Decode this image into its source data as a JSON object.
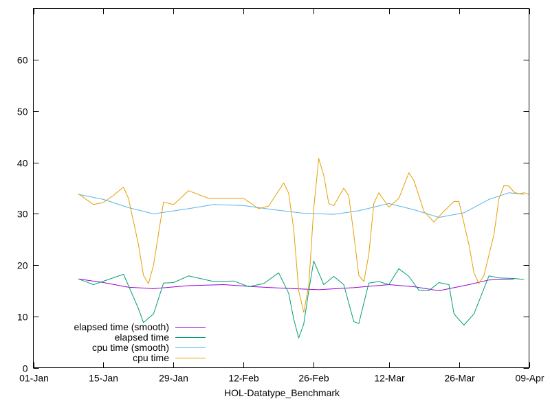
{
  "chart_data": {
    "type": "line",
    "title": "",
    "xlabel": "HOL-Datatype_Benchmark",
    "ylabel": "",
    "xlim": [
      "2024-01-01",
      "2024-04-09"
    ],
    "ylim": [
      0,
      70
    ],
    "x_ticks": [
      {
        "date": "2024-01-01",
        "label": "01-Jan"
      },
      {
        "date": "2024-01-15",
        "label": "15-Jan"
      },
      {
        "date": "2024-01-29",
        "label": "29-Jan"
      },
      {
        "date": "2024-02-12",
        "label": "12-Feb"
      },
      {
        "date": "2024-02-26",
        "label": "26-Feb"
      },
      {
        "date": "2024-03-12",
        "label": "12-Mar"
      },
      {
        "date": "2024-03-26",
        "label": "26-Mar"
      },
      {
        "date": "2024-04-09",
        "label": "09-Apr"
      }
    ],
    "y_ticks": [
      0,
      10,
      20,
      30,
      40,
      50,
      60
    ],
    "grid": false,
    "legend_position": "bottom-left",
    "series": [
      {
        "name": "elapsed time (smooth)",
        "color": "#9400d3",
        "points": [
          [
            "2024-01-10",
            17.3
          ],
          [
            "2024-01-15",
            16.6
          ],
          [
            "2024-01-20",
            15.7
          ],
          [
            "2024-01-25",
            15.4
          ],
          [
            "2024-02-01",
            16.0
          ],
          [
            "2024-02-08",
            16.2
          ],
          [
            "2024-02-14",
            15.8
          ],
          [
            "2024-02-20",
            15.5
          ],
          [
            "2024-02-27",
            15.2
          ],
          [
            "2024-03-05",
            15.6
          ],
          [
            "2024-03-12",
            16.2
          ],
          [
            "2024-03-17",
            15.8
          ],
          [
            "2024-03-22",
            15.0
          ],
          [
            "2024-03-28",
            16.2
          ],
          [
            "2024-04-01",
            17.1
          ],
          [
            "2024-04-06",
            17.3
          ]
        ]
      },
      {
        "name": "elapsed time",
        "color": "#009e73",
        "points": [
          [
            "2024-01-10",
            17.3
          ],
          [
            "2024-01-13",
            16.2
          ],
          [
            "2024-01-16",
            17.2
          ],
          [
            "2024-01-19",
            18.2
          ],
          [
            "2024-01-20",
            16.0
          ],
          [
            "2024-01-22",
            11.5
          ],
          [
            "2024-01-23",
            8.8
          ],
          [
            "2024-01-25",
            10.5
          ],
          [
            "2024-01-27",
            16.5
          ],
          [
            "2024-01-29",
            16.6
          ],
          [
            "2024-02-01",
            17.9
          ],
          [
            "2024-02-06",
            16.8
          ],
          [
            "2024-02-10",
            16.9
          ],
          [
            "2024-02-13",
            15.8
          ],
          [
            "2024-02-16",
            16.4
          ],
          [
            "2024-02-19",
            18.5
          ],
          [
            "2024-02-21",
            14.5
          ],
          [
            "2024-02-22",
            9.5
          ],
          [
            "2024-02-23",
            5.8
          ],
          [
            "2024-02-24",
            8.5
          ],
          [
            "2024-02-25",
            15.0
          ],
          [
            "2024-02-26",
            20.8
          ],
          [
            "2024-02-28",
            16.2
          ],
          [
            "2024-03-01",
            17.8
          ],
          [
            "2024-03-03",
            16.2
          ],
          [
            "2024-03-05",
            9.0
          ],
          [
            "2024-03-06",
            8.6
          ],
          [
            "2024-03-08",
            16.5
          ],
          [
            "2024-03-10",
            16.8
          ],
          [
            "2024-03-12",
            16.2
          ],
          [
            "2024-03-14",
            19.3
          ],
          [
            "2024-03-16",
            17.8
          ],
          [
            "2024-03-18",
            15.1
          ],
          [
            "2024-03-20",
            15.0
          ],
          [
            "2024-03-22",
            16.6
          ],
          [
            "2024-03-24",
            16.2
          ],
          [
            "2024-03-25",
            10.5
          ],
          [
            "2024-03-27",
            8.3
          ],
          [
            "2024-03-29",
            10.5
          ],
          [
            "2024-04-01",
            17.9
          ],
          [
            "2024-04-03",
            17.5
          ],
          [
            "2024-04-06",
            17.4
          ],
          [
            "2024-04-08",
            17.2
          ]
        ]
      },
      {
        "name": "cpu time (smooth)",
        "color": "#56b4e9",
        "points": [
          [
            "2024-01-10",
            33.8
          ],
          [
            "2024-01-15",
            32.8
          ],
          [
            "2024-01-20",
            31.2
          ],
          [
            "2024-01-25",
            30.0
          ],
          [
            "2024-02-01",
            31.0
          ],
          [
            "2024-02-06",
            31.8
          ],
          [
            "2024-02-12",
            31.6
          ],
          [
            "2024-02-18",
            30.8
          ],
          [
            "2024-02-24",
            30.1
          ],
          [
            "2024-03-01",
            29.9
          ],
          [
            "2024-03-06",
            30.6
          ],
          [
            "2024-03-12",
            32.0
          ],
          [
            "2024-03-17",
            30.8
          ],
          [
            "2024-03-22",
            29.3
          ],
          [
            "2024-03-27",
            30.2
          ],
          [
            "2024-04-01",
            32.8
          ],
          [
            "2024-04-05",
            34.1
          ],
          [
            "2024-04-08",
            33.8
          ]
        ]
      },
      {
        "name": "cpu time",
        "color": "#e69f00",
        "points": [
          [
            "2024-01-10",
            33.9
          ],
          [
            "2024-01-13",
            31.8
          ],
          [
            "2024-01-15",
            32.2
          ],
          [
            "2024-01-17",
            33.6
          ],
          [
            "2024-01-19",
            35.2
          ],
          [
            "2024-01-20",
            33.0
          ],
          [
            "2024-01-22",
            24.0
          ],
          [
            "2024-01-23",
            18.0
          ],
          [
            "2024-01-24",
            16.4
          ],
          [
            "2024-01-25",
            20.0
          ],
          [
            "2024-01-27",
            32.3
          ],
          [
            "2024-01-29",
            31.8
          ],
          [
            "2024-02-01",
            34.5
          ],
          [
            "2024-02-05",
            33.0
          ],
          [
            "2024-02-09",
            33.0
          ],
          [
            "2024-02-12",
            33.0
          ],
          [
            "2024-02-15",
            31.0
          ],
          [
            "2024-02-17",
            31.5
          ],
          [
            "2024-02-20",
            36.0
          ],
          [
            "2024-02-21",
            34.0
          ],
          [
            "2024-02-22",
            27.0
          ],
          [
            "2024-02-23",
            15.0
          ],
          [
            "2024-02-24",
            10.8
          ],
          [
            "2024-02-25",
            16.0
          ],
          [
            "2024-02-26",
            31.0
          ],
          [
            "2024-02-27",
            40.8
          ],
          [
            "2024-02-28",
            37.5
          ],
          [
            "2024-02-29",
            32.0
          ],
          [
            "2024-03-01",
            31.6
          ],
          [
            "2024-03-03",
            35.0
          ],
          [
            "2024-03-04",
            33.5
          ],
          [
            "2024-03-05",
            26.0
          ],
          [
            "2024-03-06",
            18.0
          ],
          [
            "2024-03-07",
            16.8
          ],
          [
            "2024-03-08",
            22.0
          ],
          [
            "2024-03-09",
            32.0
          ],
          [
            "2024-03-10",
            34.1
          ],
          [
            "2024-03-12",
            31.3
          ],
          [
            "2024-03-14",
            33.0
          ],
          [
            "2024-03-16",
            38.0
          ],
          [
            "2024-03-17",
            36.5
          ],
          [
            "2024-03-19",
            30.5
          ],
          [
            "2024-03-21",
            28.4
          ],
          [
            "2024-03-23",
            30.5
          ],
          [
            "2024-03-25",
            32.4
          ],
          [
            "2024-03-26",
            32.4
          ],
          [
            "2024-03-28",
            24.0
          ],
          [
            "2024-03-29",
            18.5
          ],
          [
            "2024-03-30",
            16.4
          ],
          [
            "2024-03-31",
            18.0
          ],
          [
            "2024-04-02",
            26.0
          ],
          [
            "2024-04-03",
            33.0
          ],
          [
            "2024-04-04",
            35.5
          ],
          [
            "2024-04-05",
            35.4
          ],
          [
            "2024-04-06",
            34.2
          ],
          [
            "2024-04-07",
            33.9
          ],
          [
            "2024-04-08",
            34.1
          ],
          [
            "2024-04-09",
            33.8
          ]
        ]
      }
    ]
  }
}
